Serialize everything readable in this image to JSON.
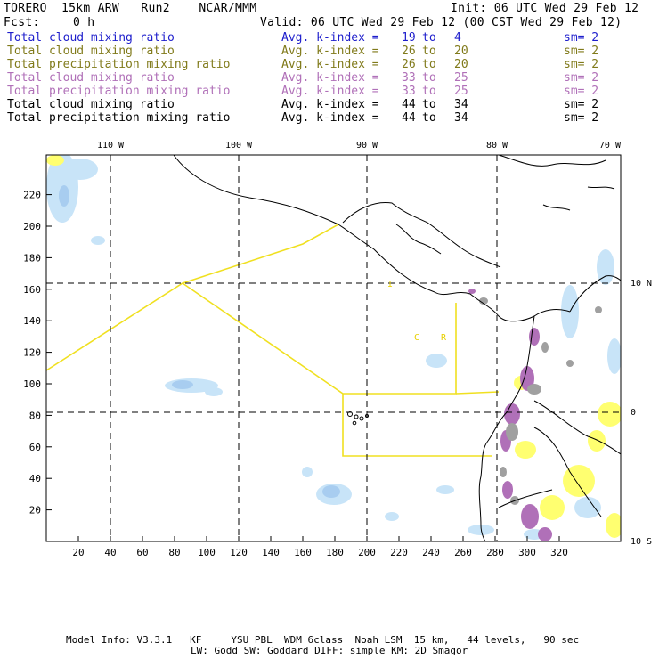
{
  "header": {
    "title": "TORERO  15km ARW   Run2    NCAR/MMM",
    "init": "Init: 06 UTC Wed 29 Feb 12",
    "fcst_label": "Fcst:",
    "fcst_value": "0 h",
    "valid": "Valid: 06 UTC Wed 29 Feb 12 (00 CST Wed 29 Feb 12)"
  },
  "legend": [
    {
      "name": "Total cloud mixing ratio",
      "avg": "Avg. k-index =",
      "k1": "19",
      "to": "to",
      "k2": "4",
      "sm": "sm= 2",
      "color": "#1e1ecc"
    },
    {
      "name": "Total cloud mixing ratio",
      "avg": "Avg. k-index =",
      "k1": "26",
      "to": "to",
      "k2": "20",
      "sm": "sm= 2",
      "color": "#807a1a"
    },
    {
      "name": "Total precipitation mixing ratio",
      "avg": "Avg. k-index =",
      "k1": "26",
      "to": "to",
      "k2": "20",
      "sm": "sm= 2",
      "color": "#807a1a"
    },
    {
      "name": "Total cloud mixing ratio",
      "avg": "Avg. k-index =",
      "k1": "33",
      "to": "to",
      "k2": "25",
      "sm": "sm= 2",
      "color": "#b070b8"
    },
    {
      "name": "Total precipitation mixing ratio",
      "avg": "Avg. k-index =",
      "k1": "33",
      "to": "to",
      "k2": "25",
      "sm": "sm= 2",
      "color": "#b070b8"
    },
    {
      "name": "Total cloud mixing ratio",
      "avg": "Avg. k-index =",
      "k1": "44",
      "to": "to",
      "k2": "34",
      "sm": "sm= 2",
      "color": "#000000"
    },
    {
      "name": "Total precipitation mixing ratio",
      "avg": "Avg. k-index =",
      "k1": "44",
      "to": "to",
      "k2": "34",
      "sm": "sm= 2",
      "color": "#000000"
    }
  ],
  "map": {
    "lon_labels": [
      "110 W",
      "100 W",
      "90 W",
      "80 W",
      "70 W"
    ],
    "lat_labels": [
      "10 N",
      "0",
      "10 S"
    ],
    "x_ticks": [
      "20",
      "40",
      "60",
      "80",
      "100",
      "120",
      "140",
      "160",
      "180",
      "200",
      "220",
      "240",
      "260",
      "280",
      "300",
      "320"
    ],
    "y_ticks": [
      "220",
      "200",
      "180",
      "160",
      "140",
      "120",
      "100",
      "80",
      "60",
      "40",
      "20"
    ],
    "region_labels": [
      "C",
      "R",
      "I"
    ],
    "colors": {
      "cloud_light": "#c8e4f8",
      "cloud_mid": "#a8cdf0",
      "precip_yellow": "#ffff70",
      "purple": "#b070b8",
      "grey": "#a0a0a0",
      "boundary_yellow": "#f0e020"
    }
  },
  "footer": {
    "line1": "Model Info: V3.3.1   KF     YSU PBL  WDM 6class  Noah LSM  15 km,   44 levels,   90 sec",
    "line2": "LW: Godd SW: Goddard DIFF: simple KM: 2D Smagor"
  }
}
